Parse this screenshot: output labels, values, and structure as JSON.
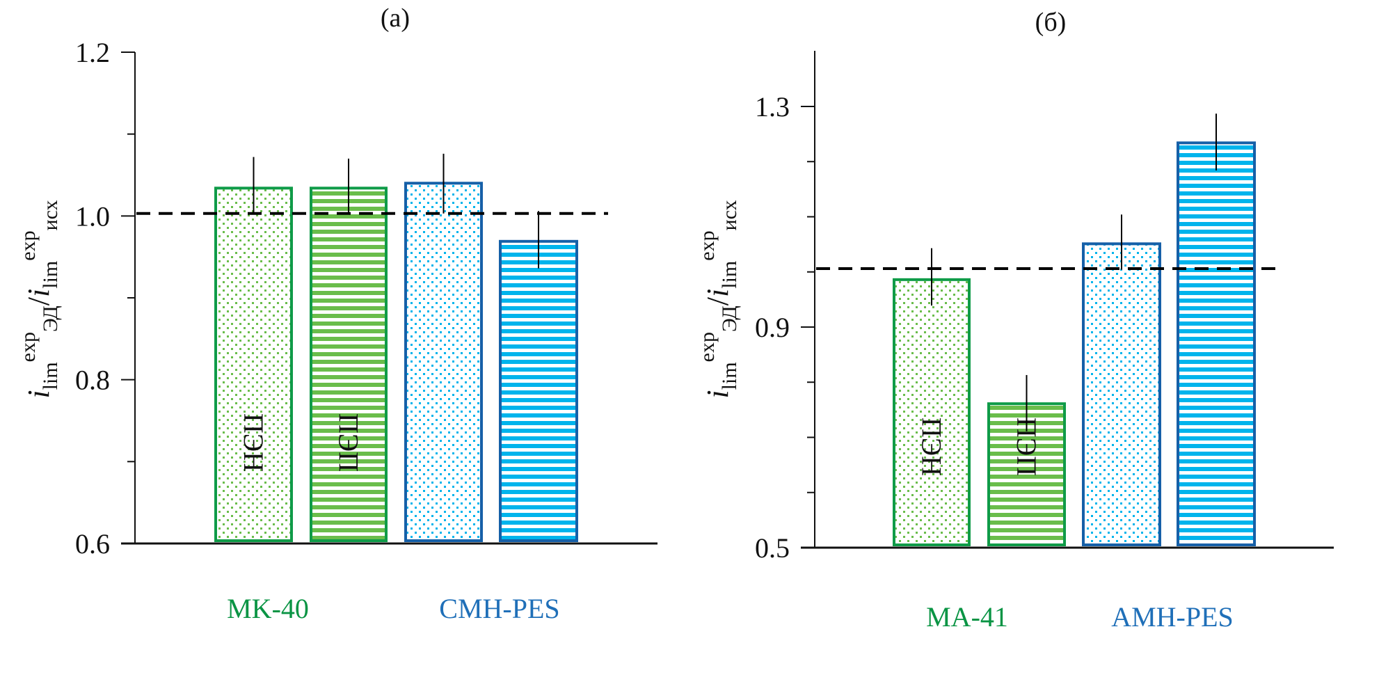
{
  "figure": {
    "colors": {
      "green_border": "#0f9b48",
      "green_fill": "#6abd4b",
      "blue_border": "#1660a8",
      "blue_fill": "#00b4ec",
      "green_text": "#0a9444",
      "blue_text": "#1f6fb8",
      "axis": "#111111"
    }
  },
  "chart_data": [
    {
      "type": "bar",
      "title": "(a)",
      "ylabel": {
        "main": "i",
        "sub1": "lim",
        "sup1": "exp",
        "sub2": "ЭД",
        "slash": "/",
        "main2": "i",
        "sub3": "lim",
        "sup2": "exp",
        "sub4": "исх"
      },
      "ylim": [
        0.6,
        1.2
      ],
      "yticks_major": [
        0.6,
        0.8,
        1.0,
        1.2
      ],
      "ytick_labels": [
        "0.6",
        "0.8",
        "1.0",
        "1.2"
      ],
      "yticks_minor": [
        0.7,
        0.9,
        1.1
      ],
      "reference_line": 1.003,
      "groups": [
        {
          "label": "MK-40",
          "color": "green"
        },
        {
          "label": "CMH-PES",
          "color": "blue"
        }
      ],
      "bars": [
        {
          "group": "MK-40",
          "pattern": "dots",
          "color": "green",
          "value": 1.034,
          "err_low": 1.003,
          "err_high": 1.072,
          "text": "ПЭН"
        },
        {
          "group": "MK-40",
          "pattern": "stripes",
          "color": "green",
          "value": 1.034,
          "err_low": 1.003,
          "err_high": 1.07,
          "text": "ПЭП"
        },
        {
          "group": "CMH-PES",
          "pattern": "dots",
          "color": "blue",
          "value": 1.04,
          "err_low": 1.003,
          "err_high": 1.076,
          "text": ""
        },
        {
          "group": "CMH-PES",
          "pattern": "stripes",
          "color": "blue",
          "value": 0.969,
          "err_low": 0.936,
          "err_high": 1.006,
          "text": ""
        }
      ]
    },
    {
      "type": "bar",
      "title": "(б)",
      "ylabel": {
        "main": "i",
        "sub1": "lim",
        "sup1": "exp",
        "sub2": "ЭД",
        "slash": "/",
        "main2": "i",
        "sub3": "lim",
        "sup2": "exp",
        "sub4": "исх"
      },
      "ylim": [
        0.5,
        1.4
      ],
      "yticks_major": [
        0.5,
        0.9,
        1.3
      ],
      "ytick_labels": [
        "0.5",
        "0.9",
        "1.3"
      ],
      "yticks_minor": [
        0.6,
        0.7,
        0.8,
        1.0,
        1.1,
        1.2
      ],
      "reference_line": 1.006,
      "groups": [
        {
          "label": "MA-41",
          "color": "green"
        },
        {
          "label": "AMH-PES",
          "color": "blue"
        }
      ],
      "bars": [
        {
          "group": "MA-41",
          "pattern": "dots",
          "color": "green",
          "value": 0.986,
          "err_low": 0.939,
          "err_high": 1.043,
          "text": "ПЭН"
        },
        {
          "group": "MA-41",
          "pattern": "stripes",
          "color": "green",
          "value": 0.761,
          "err_low": 0.711,
          "err_high": 0.813,
          "text": "ПЭП"
        },
        {
          "group": "AMH-PES",
          "pattern": "dots",
          "color": "blue",
          "value": 1.051,
          "err_low": 1.004,
          "err_high": 1.104,
          "text": ""
        },
        {
          "group": "AMH-PES",
          "pattern": "stripes",
          "color": "blue",
          "value": 1.234,
          "err_low": 1.184,
          "err_high": 1.287,
          "text": ""
        }
      ]
    }
  ]
}
